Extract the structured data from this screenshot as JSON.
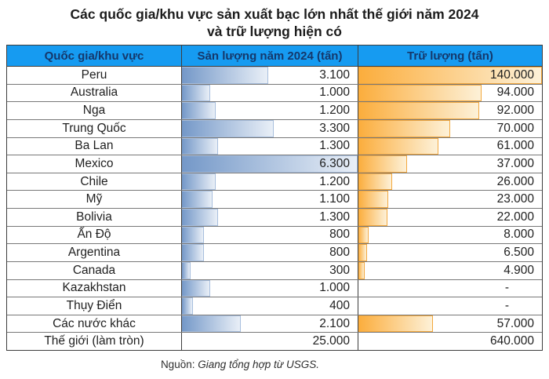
{
  "title": {
    "line1": "Các quốc gia/khu vực sản xuất bạc lớn nhất thế giới năm 2024",
    "line2": "và trữ lượng hiện có"
  },
  "source": {
    "prefix": "Nguồn:",
    "text": "Giang tổng hợp từ USGS."
  },
  "colors": {
    "header_bg": "#169bf1",
    "header_text": "#15386b",
    "bar_blue_start": "#7498c8",
    "bar_blue_end": "#e9eff7",
    "bar_blue_border": "#a7bedd",
    "bar_orange_start": "#fbad3c",
    "bar_orange_end": "#fdf1d8",
    "bar_orange_border": "#f3a83e"
  },
  "table": {
    "headers": [
      "Quốc gia/khu vực",
      "Sản lượng năm 2024 (tấn)",
      "Trữ lượng (tấn)"
    ],
    "max_production": 6300,
    "max_reserve": 140000,
    "rows": [
      {
        "country": "Peru",
        "production": "3.100",
        "production_value": 3100,
        "reserve": "140.000",
        "reserve_value": 140000
      },
      {
        "country": "Australia",
        "production": "1.000",
        "production_value": 1000,
        "reserve": "94.000",
        "reserve_value": 94000
      },
      {
        "country": "Nga",
        "production": "1.200",
        "production_value": 1200,
        "reserve": "92.000",
        "reserve_value": 92000
      },
      {
        "country": "Trung Quốc",
        "production": "3.300",
        "production_value": 3300,
        "reserve": "70.000",
        "reserve_value": 70000
      },
      {
        "country": "Ba Lan",
        "production": "1.300",
        "production_value": 1300,
        "reserve": "61.000",
        "reserve_value": 61000
      },
      {
        "country": "Mexico",
        "production": "6.300",
        "production_value": 6300,
        "reserve": "37.000",
        "reserve_value": 37000
      },
      {
        "country": "Chile",
        "production": "1.200",
        "production_value": 1200,
        "reserve": "26.000",
        "reserve_value": 26000
      },
      {
        "country": "Mỹ",
        "production": "1.100",
        "production_value": 1100,
        "reserve": "23.000",
        "reserve_value": 23000
      },
      {
        "country": "Bolivia",
        "production": "1.300",
        "production_value": 1300,
        "reserve": "22.000",
        "reserve_value": 22000
      },
      {
        "country": "Ấn Độ",
        "production": "800",
        "production_value": 800,
        "reserve": "8.000",
        "reserve_value": 8000
      },
      {
        "country": "Argentina",
        "production": "800",
        "production_value": 800,
        "reserve": "6.500",
        "reserve_value": 6500
      },
      {
        "country": "Canada",
        "production": "300",
        "production_value": 300,
        "reserve": "4.900",
        "reserve_value": 4900
      },
      {
        "country": "Kazakhstan",
        "production": "1.000",
        "production_value": 1000,
        "reserve": "-",
        "reserve_value": null
      },
      {
        "country": "Thụy Điển",
        "production": "400",
        "production_value": 400,
        "reserve": "-",
        "reserve_value": null
      },
      {
        "country": "Các nước khác",
        "production": "2.100",
        "production_value": 2100,
        "reserve": "57.000",
        "reserve_value": 57000
      },
      {
        "country": "Thế giới (làm tròn)",
        "production": "25.000",
        "production_value": null,
        "reserve": "640.000",
        "reserve_value": null
      }
    ]
  },
  "chart_data": {
    "type": "table",
    "title": "Các quốc gia/khu vực sản xuất bạc lớn nhất thế giới năm 2024 và trữ lượng hiện có",
    "categories": [
      "Peru",
      "Australia",
      "Nga",
      "Trung Quốc",
      "Ba Lan",
      "Mexico",
      "Chile",
      "Mỹ",
      "Bolivia",
      "Ấn Độ",
      "Argentina",
      "Canada",
      "Kazakhstan",
      "Thụy Điển",
      "Các nước khác",
      "Thế giới (làm tròn)"
    ],
    "series": [
      {
        "name": "Sản lượng năm 2024 (tấn)",
        "values": [
          3100,
          1000,
          1200,
          3300,
          1300,
          6300,
          1200,
          1100,
          1300,
          800,
          800,
          300,
          1000,
          400,
          2100,
          25000
        ]
      },
      {
        "name": "Trữ lượng (tấn)",
        "values": [
          140000,
          94000,
          92000,
          70000,
          61000,
          37000,
          26000,
          23000,
          22000,
          8000,
          6500,
          4900,
          null,
          null,
          57000,
          640000
        ]
      }
    ],
    "notes": "In-cell data bars: blue gradient = production scaled to max 6300; orange gradient = reserves scaled to max 140000; world total row has no bars",
    "legend_position": "none",
    "grid": "table borders"
  }
}
